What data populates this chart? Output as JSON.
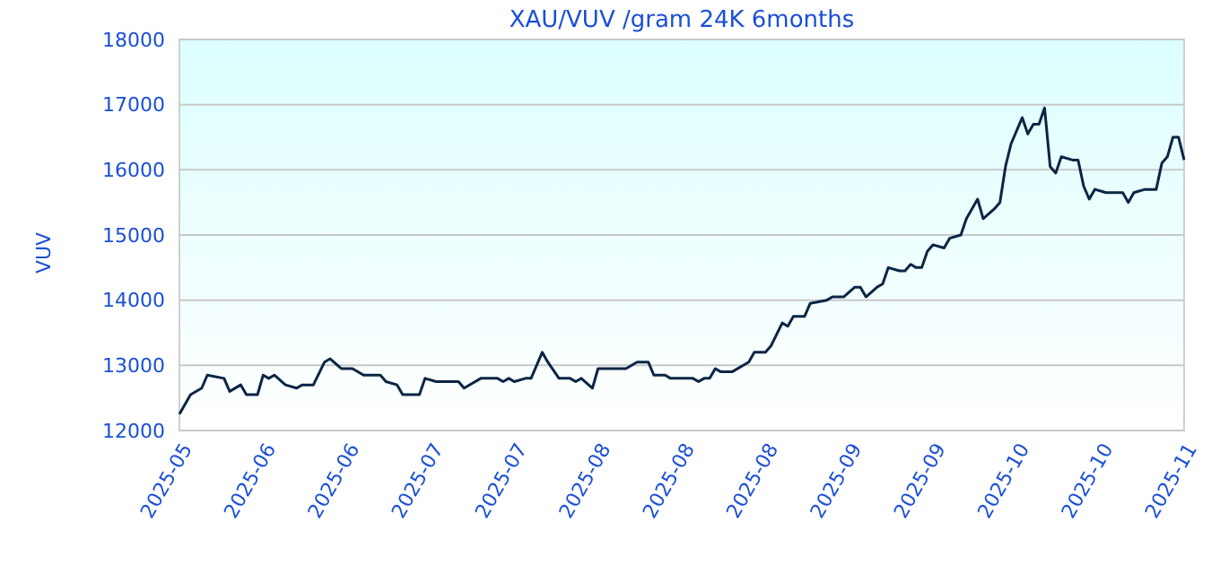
{
  "chart_data": {
    "type": "line",
    "title": "XAU/VUV /gram 24K 6months",
    "ylabel": "VUV",
    "x": [
      "2025-05-05",
      "2025-05-07",
      "2025-05-09",
      "2025-05-10",
      "2025-05-13",
      "2025-05-14",
      "2025-05-16",
      "2025-05-17",
      "2025-05-19",
      "2025-05-20",
      "2025-05-21",
      "2025-05-22",
      "2025-05-24",
      "2025-05-26",
      "2025-05-27",
      "2025-05-29",
      "2025-05-31",
      "2025-06-01",
      "2025-06-03",
      "2025-06-05",
      "2025-06-07",
      "2025-06-10",
      "2025-06-11",
      "2025-06-13",
      "2025-06-14",
      "2025-06-17",
      "2025-06-18",
      "2025-06-20",
      "2025-06-24",
      "2025-06-25",
      "2025-06-28",
      "2025-07-01",
      "2025-07-02",
      "2025-07-03",
      "2025-07-04",
      "2025-07-06",
      "2025-07-07",
      "2025-07-09",
      "2025-07-10",
      "2025-07-12",
      "2025-07-14",
      "2025-07-15",
      "2025-07-16",
      "2025-07-18",
      "2025-07-19",
      "2025-07-22",
      "2025-07-24",
      "2025-07-26",
      "2025-07-28",
      "2025-07-29",
      "2025-07-31",
      "2025-08-01",
      "2025-08-05",
      "2025-08-06",
      "2025-08-07",
      "2025-08-08",
      "2025-08-09",
      "2025-08-10",
      "2025-08-12",
      "2025-08-15",
      "2025-08-16",
      "2025-08-18",
      "2025-08-19",
      "2025-08-21",
      "2025-08-22",
      "2025-08-23",
      "2025-08-25",
      "2025-08-26",
      "2025-08-29",
      "2025-08-30",
      "2025-09-01",
      "2025-09-03",
      "2025-09-04",
      "2025-09-05",
      "2025-09-07",
      "2025-09-08",
      "2025-09-09",
      "2025-09-11",
      "2025-09-12",
      "2025-09-13",
      "2025-09-14",
      "2025-09-15",
      "2025-09-16",
      "2025-09-17",
      "2025-09-19",
      "2025-09-20",
      "2025-09-22",
      "2025-09-23",
      "2025-09-25",
      "2025-09-26",
      "2025-09-28",
      "2025-09-29",
      "2025-09-30",
      "2025-10-01",
      "2025-10-03",
      "2025-10-04",
      "2025-10-05",
      "2025-10-06",
      "2025-10-07",
      "2025-10-08",
      "2025-10-09",
      "2025-10-10",
      "2025-10-12",
      "2025-10-13",
      "2025-10-14",
      "2025-10-15",
      "2025-10-16",
      "2025-10-18",
      "2025-10-21",
      "2025-10-22",
      "2025-10-23",
      "2025-10-25",
      "2025-10-27",
      "2025-10-28",
      "2025-10-29",
      "2025-10-30",
      "2025-10-31",
      "2025-11-01"
    ],
    "series": [
      {
        "color": "#0b2545",
        "values": [
          12250,
          12550,
          12650,
          12850,
          12800,
          12600,
          12700,
          12550,
          12550,
          12850,
          12800,
          12850,
          12700,
          12650,
          12700,
          12700,
          13050,
          13100,
          12950,
          12950,
          12850,
          12850,
          12750,
          12700,
          12550,
          12550,
          12800,
          12750,
          12750,
          12650,
          12800,
          12800,
          12750,
          12800,
          12750,
          12800,
          12800,
          13200,
          13050,
          12800,
          12800,
          12750,
          12800,
          12650,
          12950,
          12950,
          12950,
          13050,
          13050,
          12850,
          12850,
          12800,
          12800,
          12750,
          12800,
          12800,
          12950,
          12900,
          12900,
          13050,
          13200,
          13200,
          13300,
          13650,
          13600,
          13750,
          13750,
          13950,
          14000,
          14050,
          14050,
          14200,
          14200,
          14050,
          14200,
          14250,
          14500,
          14450,
          14450,
          14550,
          14500,
          14500,
          14750,
          14850,
          14800,
          14950,
          15000,
          15250,
          15550,
          15250,
          15400,
          15500,
          16050,
          16400,
          16800,
          16550,
          16700,
          16700,
          16950,
          16050,
          15950,
          16200,
          16150,
          16150,
          15750,
          15550,
          15700,
          15650,
          15650,
          15500,
          15650,
          15700,
          15700,
          16100,
          16200,
          16500,
          16500,
          16150
        ]
      }
    ],
    "xlim": [
      "2025-05-05",
      "2025-11-01"
    ],
    "xticks": [
      {
        "value": "2025-05-05",
        "label": "2025-05"
      },
      {
        "value": "2025-05-20",
        "label": "2025-06"
      },
      {
        "value": "2025-06-04",
        "label": "2025-06"
      },
      {
        "value": "2025-06-19",
        "label": "2025-07"
      },
      {
        "value": "2025-07-04",
        "label": "2025-07"
      },
      {
        "value": "2025-07-19",
        "label": "2025-08"
      },
      {
        "value": "2025-08-03",
        "label": "2025-08"
      },
      {
        "value": "2025-08-18",
        "label": "2025-08"
      },
      {
        "value": "2025-09-02",
        "label": "2025-09"
      },
      {
        "value": "2025-09-17",
        "label": "2025-09"
      },
      {
        "value": "2025-10-02",
        "label": "2025-10"
      },
      {
        "value": "2025-10-17",
        "label": "2025-10"
      },
      {
        "value": "2025-11-01",
        "label": "2025-11"
      }
    ],
    "ylim": [
      12000,
      18000
    ],
    "yticks": [
      12000,
      13000,
      14000,
      15000,
      16000,
      17000,
      18000
    ],
    "grid": "y",
    "marker": "none",
    "line_style": "solid"
  }
}
